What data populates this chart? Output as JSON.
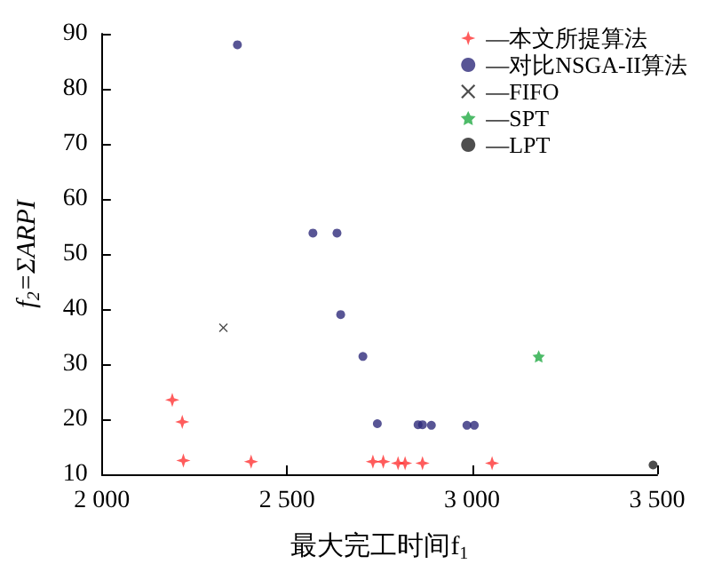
{
  "chart_data": {
    "type": "scatter",
    "xlabel": "最大完工时间f$_{1}$",
    "ylabel": "f$_{2}$=ΣARPI",
    "xlim": [
      2000,
      3500
    ],
    "xticks": [
      {
        "value": 2000,
        "label": "2 000"
      },
      {
        "value": 2500,
        "label": "2 500"
      },
      {
        "value": 3000,
        "label": "3 000"
      },
      {
        "value": 3500,
        "label": "3 500"
      }
    ],
    "ylim": [
      10,
      90
    ],
    "yticks": [
      10,
      20,
      30,
      40,
      50,
      60,
      70,
      80,
      90
    ],
    "grid": false,
    "legend": "top right",
    "series": [
      {
        "name": "—本文所提算法",
        "color": "#ff3333",
        "marker": "diamond",
        "x": [
          2190,
          2217,
          2220,
          2403,
          2732,
          2760,
          2800,
          2819,
          2866,
          3054
        ],
        "values": [
          23.5,
          19.5,
          12.5,
          12.3,
          12.3,
          12.3,
          12,
          12,
          12,
          12
        ]
      },
      {
        "name": "—对比NSGA-II算法",
        "color": "#2e2a7a",
        "marker": "circle",
        "x": [
          2366,
          2570,
          2635,
          2645,
          2705,
          2744,
          2854,
          2866,
          2890,
          2986,
          3006
        ],
        "values": [
          88,
          53.8,
          53.8,
          39,
          31.4,
          19.2,
          19,
          19,
          18.9,
          18.9,
          18.9
        ]
      },
      {
        "name": "—FIFO",
        "color": "#222222",
        "marker": "cross",
        "x": [
          2328
        ],
        "values": [
          36.6
        ]
      },
      {
        "name": "—SPT",
        "color": "#22aa44",
        "marker": "star",
        "x": [
          3180
        ],
        "values": [
          31.4
        ]
      },
      {
        "name": "—LPT",
        "color": "#222222",
        "marker": "circle",
        "x": [
          3489
        ],
        "values": [
          11.7
        ]
      }
    ]
  }
}
